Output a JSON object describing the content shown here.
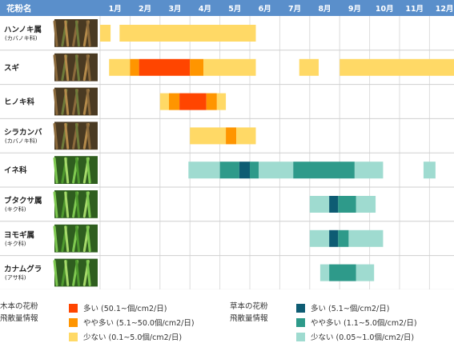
{
  "header": {
    "name_col": "花粉名",
    "months": [
      "1月",
      "2月",
      "3月",
      "4月",
      "5月",
      "6月",
      "7月",
      "8月",
      "9月",
      "10月",
      "11月",
      "12月"
    ]
  },
  "colors": {
    "header_bg": "#5a8fcb",
    "tree_high": "#ff4500",
    "tree_mid": "#ff9500",
    "tree_low": "#ffd966",
    "grass_high": "#0e5c73",
    "grass_mid": "#2e9a8a",
    "grass_low": "#9fdbd0"
  },
  "legend": {
    "tree": {
      "title_line1": "木本の花粉",
      "title_line2": "飛散量情報",
      "items": [
        {
          "label": "多い (50.1~個/cm2/日)",
          "color": "#ff4500"
        },
        {
          "label": "やや多い (5.1~50.0個/cm2/日)",
          "color": "#ff9500"
        },
        {
          "label": "少ない (0.1~5.0個/cm2/日)",
          "color": "#ffd966"
        }
      ]
    },
    "grass": {
      "title_line1": "草本の花粉",
      "title_line2": "飛散量情報",
      "items": [
        {
          "label": "多い (5.1~個/cm2/日)",
          "color": "#0e5c73"
        },
        {
          "label": "やや多い (1.1~5.0個/cm2/日)",
          "color": "#2e9a8a"
        },
        {
          "label": "少ない (0.05~1.0個/cm2/日)",
          "color": "#9fdbd0"
        }
      ]
    }
  },
  "chart_data": {
    "type": "heatmap",
    "x_unit": "month",
    "categories": [
      "1月",
      "2月",
      "3月",
      "4月",
      "5月",
      "6月",
      "7月",
      "8月",
      "9月",
      "10月",
      "11月",
      "12月"
    ],
    "rows": [
      {
        "name": "ハンノキ属",
        "sub": "(カバノキ科)",
        "kind": "tree",
        "photo": "alder-catkins",
        "segments": [
          {
            "start": 1.0,
            "end": 1.35,
            "level": "low"
          },
          {
            "start": 1.65,
            "end": 6.2,
            "level": "low"
          }
        ]
      },
      {
        "name": "スギ",
        "sub": "",
        "kind": "tree",
        "photo": "cedar-branches",
        "segments": [
          {
            "start": 1.3,
            "end": 2.0,
            "level": "low"
          },
          {
            "start": 2.0,
            "end": 2.3,
            "level": "mid"
          },
          {
            "start": 2.3,
            "end": 4.0,
            "level": "high"
          },
          {
            "start": 4.0,
            "end": 4.45,
            "level": "mid"
          },
          {
            "start": 4.45,
            "end": 6.2,
            "level": "low"
          },
          {
            "start": 7.65,
            "end": 8.3,
            "level": "low"
          },
          {
            "start": 9.0,
            "end": 13.0,
            "level": "low"
          }
        ]
      },
      {
        "name": "ヒノキ科",
        "sub": "",
        "kind": "tree",
        "photo": "cypress-cones",
        "segments": [
          {
            "start": 3.0,
            "end": 3.3,
            "level": "low"
          },
          {
            "start": 3.3,
            "end": 3.65,
            "level": "mid"
          },
          {
            "start": 3.65,
            "end": 4.55,
            "level": "high"
          },
          {
            "start": 4.55,
            "end": 4.9,
            "level": "mid"
          },
          {
            "start": 4.9,
            "end": 5.2,
            "level": "low"
          }
        ]
      },
      {
        "name": "シラカンバ",
        "sub": "(カバノキ科)",
        "kind": "tree",
        "photo": "birch-tree",
        "segments": [
          {
            "start": 4.0,
            "end": 5.2,
            "level": "low"
          },
          {
            "start": 5.2,
            "end": 5.55,
            "level": "mid"
          },
          {
            "start": 5.55,
            "end": 6.2,
            "level": "low"
          }
        ]
      },
      {
        "name": "イネ科",
        "sub": "",
        "kind": "grass",
        "photo": "rice-grass",
        "segments": [
          {
            "start": 3.95,
            "end": 5.0,
            "level": "low"
          },
          {
            "start": 5.0,
            "end": 5.65,
            "level": "mid"
          },
          {
            "start": 5.65,
            "end": 6.0,
            "level": "high"
          },
          {
            "start": 6.0,
            "end": 6.3,
            "level": "mid"
          },
          {
            "start": 6.3,
            "end": 7.45,
            "level": "low"
          },
          {
            "start": 7.45,
            "end": 9.5,
            "level": "mid"
          },
          {
            "start": 9.5,
            "end": 10.45,
            "level": "low"
          },
          {
            "start": 11.8,
            "end": 12.2,
            "level": "low"
          }
        ]
      },
      {
        "name": "ブタクサ属",
        "sub": "(キク科)",
        "kind": "grass",
        "photo": "ragweed",
        "segments": [
          {
            "start": 8.0,
            "end": 8.65,
            "level": "low"
          },
          {
            "start": 8.65,
            "end": 8.95,
            "level": "high"
          },
          {
            "start": 8.95,
            "end": 9.55,
            "level": "mid"
          },
          {
            "start": 9.55,
            "end": 10.2,
            "level": "low"
          }
        ]
      },
      {
        "name": "ヨモギ属",
        "sub": "(キク科)",
        "kind": "grass",
        "photo": "mugwort",
        "segments": [
          {
            "start": 8.0,
            "end": 8.65,
            "level": "low"
          },
          {
            "start": 8.65,
            "end": 8.95,
            "level": "high"
          },
          {
            "start": 8.95,
            "end": 9.3,
            "level": "mid"
          },
          {
            "start": 9.3,
            "end": 10.45,
            "level": "low"
          }
        ]
      },
      {
        "name": "カナムグラ",
        "sub": "(アサ科)",
        "kind": "grass",
        "photo": "hop-vine",
        "segments": [
          {
            "start": 8.35,
            "end": 8.65,
            "level": "low"
          },
          {
            "start": 8.65,
            "end": 9.55,
            "level": "mid"
          },
          {
            "start": 9.55,
            "end": 10.15,
            "level": "low"
          }
        ]
      }
    ]
  }
}
